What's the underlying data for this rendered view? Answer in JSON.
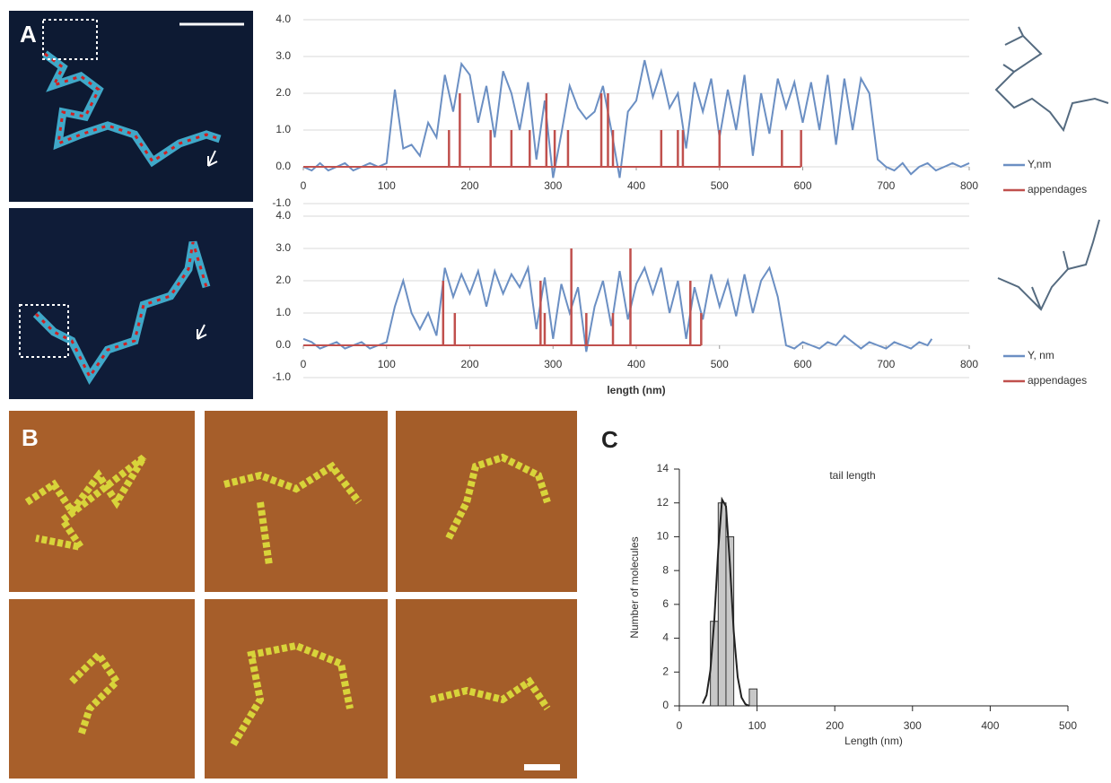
{
  "labels": {
    "a": "A",
    "b": "B",
    "c": "C"
  },
  "chart_data": [
    {
      "type": "line",
      "xlim": [
        0,
        800
      ],
      "xticks": [
        0,
        100,
        200,
        300,
        400,
        500,
        600,
        700,
        800
      ],
      "ylim": [
        -1,
        4
      ],
      "yticks": [
        {
          "value": -1,
          "label": "-1.0"
        },
        {
          "value": 0,
          "label": "0.0"
        },
        {
          "value": 1,
          "label": "1.0"
        },
        {
          "value": 2,
          "label": "2.0"
        },
        {
          "value": 3,
          "label": "3.0"
        },
        {
          "value": 4,
          "label": "4.0"
        }
      ],
      "grid": true,
      "series": [
        {
          "name": "Y,nm",
          "color": "#6b8fc3",
          "x": [
            0,
            10,
            20,
            30,
            40,
            50,
            60,
            70,
            80,
            90,
            100,
            110,
            120,
            130,
            140,
            150,
            160,
            170,
            180,
            190,
            200,
            210,
            220,
            230,
            240,
            250,
            260,
            270,
            280,
            290,
            300,
            310,
            320,
            330,
            340,
            350,
            360,
            370,
            380,
            390,
            400,
            410,
            420,
            430,
            440,
            450,
            460,
            470,
            480,
            490,
            500,
            510,
            520,
            530,
            540,
            550,
            560,
            570,
            580,
            590,
            600,
            610,
            620,
            630,
            640,
            650,
            660,
            670,
            680,
            690,
            700,
            710,
            720,
            730,
            740,
            750,
            760,
            770,
            780,
            790,
            800
          ],
          "values": [
            0,
            -0.1,
            0.1,
            -0.1,
            0,
            0.1,
            -0.1,
            0,
            0.1,
            0,
            0.1,
            2.1,
            0.5,
            0.6,
            0.3,
            1.2,
            0.8,
            2.5,
            1.5,
            2.8,
            2.5,
            1.2,
            2.2,
            0.8,
            2.6,
            2.0,
            1.0,
            2.3,
            0.2,
            1.8,
            -0.3,
            0.9,
            2.2,
            1.6,
            1.3,
            1.5,
            2.2,
            1.0,
            -0.3,
            1.5,
            1.8,
            2.9,
            1.9,
            2.6,
            1.6,
            2.0,
            0.5,
            2.3,
            1.5,
            2.4,
            0.8,
            2.1,
            1.0,
            2.5,
            0.3,
            2.0,
            0.9,
            2.4,
            1.6,
            2.3,
            1.2,
            2.3,
            1.0,
            2.5,
            0.6,
            2.4,
            1.0,
            2.4,
            2.0,
            0.2,
            0,
            -0.1,
            0.1,
            -0.2,
            0,
            0.1,
            -0.1,
            0,
            0.1,
            0,
            0.1
          ]
        },
        {
          "name": "appendages",
          "color": "#c0504d",
          "style": "stem",
          "x": [
            175,
            188,
            225,
            250,
            272,
            292,
            302,
            318,
            358,
            366,
            372,
            430,
            450,
            456,
            500,
            575,
            598
          ],
          "values": [
            1,
            2,
            1,
            1,
            1,
            2,
            1,
            1,
            2,
            2,
            1,
            1,
            1,
            1,
            1,
            1,
            1
          ]
        }
      ]
    },
    {
      "type": "line",
      "xlabel": "length (nm)",
      "xlim": [
        0,
        800
      ],
      "xticks": [
        0,
        100,
        200,
        300,
        400,
        500,
        600,
        700,
        800
      ],
      "ylim": [
        -1,
        4
      ],
      "yticks": [
        {
          "value": -1,
          "label": "-1.0"
        },
        {
          "value": 0,
          "label": "0.0"
        },
        {
          "value": 1,
          "label": "1.0"
        },
        {
          "value": 2,
          "label": "2.0"
        },
        {
          "value": 3,
          "label": "3.0"
        },
        {
          "value": 4,
          "label": "4.0"
        }
      ],
      "grid": true,
      "series": [
        {
          "name": "Y, nm",
          "color": "#6b8fc3",
          "x": [
            0,
            10,
            20,
            30,
            40,
            50,
            60,
            70,
            80,
            90,
            100,
            110,
            120,
            130,
            140,
            150,
            160,
            170,
            180,
            190,
            200,
            210,
            220,
            230,
            240,
            250,
            260,
            270,
            280,
            290,
            300,
            310,
            320,
            330,
            340,
            350,
            360,
            370,
            380,
            390,
            400,
            410,
            420,
            430,
            440,
            450,
            460,
            470,
            480,
            490,
            500,
            510,
            520,
            530,
            540,
            550,
            560,
            570,
            580,
            590,
            600,
            610,
            620,
            630,
            640,
            650,
            660,
            670,
            680,
            690,
            700,
            710,
            720,
            730,
            740,
            750,
            755
          ],
          "values": [
            0.2,
            0.1,
            -0.1,
            0,
            0.1,
            -0.1,
            0,
            0.1,
            -0.1,
            0,
            0.1,
            1.2,
            2.0,
            1.0,
            0.5,
            1.0,
            0.3,
            2.4,
            1.5,
            2.2,
            1.6,
            2.3,
            1.2,
            2.3,
            1.6,
            2.2,
            1.8,
            2.4,
            0.5,
            2.1,
            0.2,
            1.9,
            1.0,
            1.8,
            -0.2,
            1.2,
            2.0,
            0.6,
            2.3,
            0.8,
            1.9,
            2.4,
            1.6,
            2.4,
            1.0,
            2.0,
            0.2,
            1.8,
            0.8,
            2.2,
            1.2,
            2.0,
            0.9,
            2.2,
            1.0,
            2.0,
            2.4,
            1.5,
            0,
            -0.1,
            0.1,
            0,
            -0.1,
            0.1,
            0,
            0.3,
            0.1,
            -0.1,
            0.1,
            0,
            -0.1,
            0.1,
            0,
            -0.1,
            0.1,
            0,
            0.2
          ]
        },
        {
          "name": "appendages",
          "color": "#c0504d",
          "style": "stem",
          "x": [
            168,
            182,
            285,
            290,
            322,
            340,
            372,
            393,
            465,
            478
          ],
          "values": [
            2,
            1,
            2,
            1,
            3,
            1,
            1,
            3,
            2,
            1
          ]
        }
      ]
    },
    {
      "type": "histogram",
      "title": "tail length",
      "xlabel": "Length (nm)",
      "ylabel": "Number of molecules",
      "xlim": [
        0,
        500
      ],
      "xticks": [
        0,
        100,
        200,
        300,
        400,
        500
      ],
      "ylim": [
        0,
        14
      ],
      "yticks": [
        0,
        2,
        4,
        6,
        8,
        10,
        12,
        14
      ],
      "bins": [
        40,
        50,
        60,
        70,
        80,
        90,
        100
      ],
      "counts": [
        5,
        12,
        10,
        0,
        0,
        1
      ],
      "color": "#c8c8c8",
      "fit": {
        "x": [
          30,
          35,
          40,
          45,
          50,
          55,
          60,
          65,
          70,
          75,
          80,
          85,
          90
        ],
        "values": [
          0.14,
          0.63,
          2.1,
          5.1,
          9.2,
          12.2,
          11.8,
          8.4,
          4.4,
          1.7,
          0.5,
          0.1,
          0
        ]
      }
    }
  ]
}
